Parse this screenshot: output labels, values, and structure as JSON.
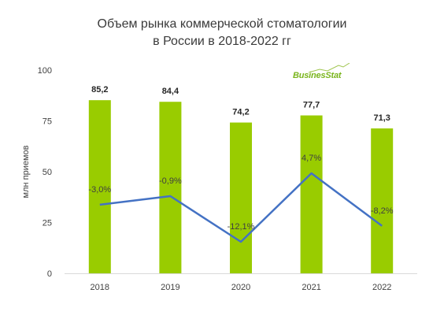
{
  "chart_data": {
    "type": "bar",
    "title": [
      "Объем рынка коммерческой стоматологии",
      "в России в 2018-2022 гг"
    ],
    "ylabel": "млн приемов",
    "categories": [
      "2018",
      "2019",
      "2020",
      "2021",
      "2022"
    ],
    "ylim": [
      0,
      100
    ],
    "yticks": [
      0,
      25,
      50,
      75,
      100
    ],
    "bar_color": "#99cc00",
    "line_color": "#4472c4",
    "series": [
      {
        "type": "bar",
        "values": [
          85.2,
          84.4,
          74.2,
          77.7,
          71.3
        ],
        "labels": [
          "85,2",
          "84,4",
          "74,2",
          "77,7",
          "71,3"
        ]
      },
      {
        "type": "line",
        "values": [
          -3.0,
          -0.9,
          -12.1,
          4.7,
          -8.2
        ],
        "labels": [
          "-3,0%",
          "-0,9%",
          "-12,1%",
          "4,7%",
          "-8,2%"
        ]
      }
    ]
  },
  "logo": {
    "text": "BusinesStat"
  }
}
